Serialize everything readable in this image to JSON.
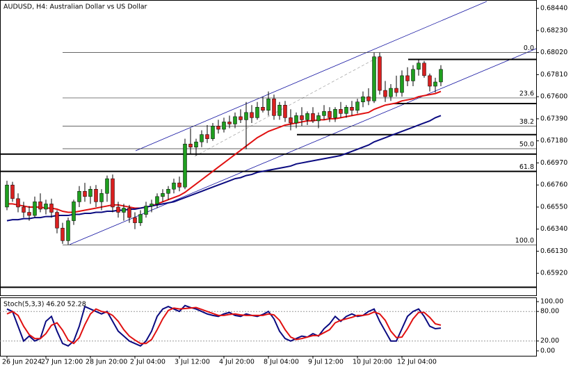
{
  "chart_data": [
    {
      "type": "candlestick",
      "title": "AUDUSD, H4:  Australian Dollar vs US Dollar",
      "open": [
        0.6655,
        0.6676,
        0.6663,
        0.6655,
        0.665,
        0.6647,
        0.666,
        0.6653,
        0.6658,
        0.665,
        0.6635,
        0.6623,
        0.6642,
        0.666,
        0.667,
        0.6665,
        0.6672,
        0.666,
        0.6668,
        0.6682,
        0.6655,
        0.665,
        0.6654,
        0.6645,
        0.664,
        0.6648,
        0.6656,
        0.6658,
        0.6665,
        0.6668,
        0.6672,
        0.6678,
        0.6674,
        0.6715,
        0.6712,
        0.6717,
        0.6724,
        0.672,
        0.6732,
        0.6729,
        0.6736,
        0.6734,
        0.6741,
        0.6738,
        0.6745,
        0.674,
        0.675,
        0.6747,
        0.6758,
        0.6742,
        0.6752,
        0.674,
        0.6735,
        0.6742,
        0.6738,
        0.6744,
        0.6737,
        0.6742,
        0.6746,
        0.674,
        0.6748,
        0.6744,
        0.675,
        0.6747,
        0.6755,
        0.676,
        0.6756,
        0.6798,
        0.6766,
        0.676,
        0.6768,
        0.6764,
        0.678,
        0.6775,
        0.6786,
        0.6792,
        0.678,
        0.677,
        0.6774
      ],
      "high": [
        0.668,
        0.6679,
        0.6668,
        0.666,
        0.6656,
        0.6665,
        0.6668,
        0.6662,
        0.6663,
        0.6652,
        0.664,
        0.6645,
        0.6662,
        0.6675,
        0.6678,
        0.6675,
        0.6676,
        0.6672,
        0.6685,
        0.6686,
        0.666,
        0.6658,
        0.6657,
        0.665,
        0.6652,
        0.666,
        0.6662,
        0.6668,
        0.6672,
        0.6675,
        0.6682,
        0.6684,
        0.672,
        0.673,
        0.672,
        0.6728,
        0.6733,
        0.6735,
        0.6738,
        0.674,
        0.6742,
        0.6745,
        0.6748,
        0.6755,
        0.6752,
        0.6755,
        0.676,
        0.6765,
        0.6762,
        0.6755,
        0.6756,
        0.6748,
        0.6745,
        0.675,
        0.6746,
        0.675,
        0.6745,
        0.6752,
        0.675,
        0.675,
        0.6755,
        0.6752,
        0.6756,
        0.6758,
        0.6765,
        0.6768,
        0.6802,
        0.6802,
        0.6775,
        0.6772,
        0.678,
        0.6785,
        0.6788,
        0.679,
        0.6796,
        0.6794,
        0.6782,
        0.6778,
        0.679
      ],
      "low": [
        0.6652,
        0.666,
        0.665,
        0.6645,
        0.6642,
        0.6645,
        0.665,
        0.6648,
        0.6645,
        0.663,
        0.662,
        0.6619,
        0.6638,
        0.6655,
        0.666,
        0.6658,
        0.6655,
        0.6652,
        0.666,
        0.665,
        0.6645,
        0.6642,
        0.664,
        0.6634,
        0.6637,
        0.6645,
        0.665,
        0.6654,
        0.666,
        0.6662,
        0.6668,
        0.667,
        0.6672,
        0.6705,
        0.6704,
        0.6712,
        0.6716,
        0.6718,
        0.6725,
        0.6726,
        0.673,
        0.673,
        0.6735,
        0.671,
        0.6735,
        0.6738,
        0.6745,
        0.6742,
        0.6738,
        0.6738,
        0.6736,
        0.6728,
        0.673,
        0.6732,
        0.6733,
        0.6735,
        0.673,
        0.6738,
        0.6736,
        0.6736,
        0.674,
        0.674,
        0.6742,
        0.6744,
        0.675,
        0.6752,
        0.6754,
        0.6762,
        0.6755,
        0.6756,
        0.676,
        0.676,
        0.677,
        0.677,
        0.678,
        0.6778,
        0.6765,
        0.6764,
        0.677
      ],
      "close": [
        0.6676,
        0.6663,
        0.6655,
        0.665,
        0.6647,
        0.666,
        0.6653,
        0.6658,
        0.665,
        0.6635,
        0.6623,
        0.6642,
        0.666,
        0.667,
        0.6665,
        0.6672,
        0.666,
        0.6668,
        0.6682,
        0.6655,
        0.665,
        0.6654,
        0.6645,
        0.664,
        0.6648,
        0.6656,
        0.6658,
        0.6665,
        0.6668,
        0.6672,
        0.6678,
        0.6674,
        0.6715,
        0.6712,
        0.6717,
        0.6724,
        0.672,
        0.6732,
        0.6729,
        0.6736,
        0.6734,
        0.6741,
        0.6738,
        0.6745,
        0.674,
        0.675,
        0.6747,
        0.6758,
        0.6742,
        0.6752,
        0.674,
        0.6735,
        0.6742,
        0.6738,
        0.6744,
        0.6737,
        0.6742,
        0.6746,
        0.674,
        0.6748,
        0.6744,
        0.675,
        0.6747,
        0.6755,
        0.676,
        0.6756,
        0.6798,
        0.6766,
        0.676,
        0.6768,
        0.6764,
        0.678,
        0.6775,
        0.6786,
        0.6792,
        0.678,
        0.677,
        0.6774,
        0.6786
      ],
      "up_color": "#1f9e1f",
      "down_color": "#d92020",
      "overlays": [
        {
          "color": "#e01010",
          "values": [
            0.6658,
            0.6658,
            0.6657,
            0.6656,
            0.6655,
            0.6655,
            0.6655,
            0.6654,
            0.6654,
            0.6653,
            0.6651,
            0.665,
            0.665,
            0.6651,
            0.6652,
            0.6653,
            0.6654,
            0.6655,
            0.6656,
            0.6657,
            0.6657,
            0.6656,
            0.6655,
            0.6654,
            0.6654,
            0.6655,
            0.6656,
            0.6658,
            0.666,
            0.6662,
            0.6664,
            0.6666,
            0.6669,
            0.6673,
            0.6677,
            0.6681,
            0.6685,
            0.6689,
            0.6693,
            0.6697,
            0.6701,
            0.6705,
            0.6709,
            0.6713,
            0.6717,
            0.6721,
            0.6724,
            0.6727,
            0.6729,
            0.6731,
            0.6733,
            0.6734,
            0.6735,
            0.6736,
            0.6737,
            0.6737,
            0.6738,
            0.6738,
            0.6739,
            0.6739,
            0.674,
            0.6741,
            0.6742,
            0.6743,
            0.6744,
            0.6745,
            0.6748,
            0.675,
            0.6752,
            0.6753,
            0.6754,
            0.6756,
            0.6757,
            0.6758,
            0.676,
            0.6761,
            0.6762,
            0.6763,
            0.6765
          ]
        },
        {
          "color": "#0a0a80",
          "values": [
            0.6642,
            0.6643,
            0.6643,
            0.6644,
            0.6644,
            0.6645,
            0.6645,
            0.6646,
            0.6646,
            0.6647,
            0.6647,
            0.6647,
            0.6648,
            0.6648,
            0.6649,
            0.6649,
            0.665,
            0.665,
            0.6651,
            0.6651,
            0.6652,
            0.6652,
            0.6653,
            0.6653,
            0.6654,
            0.6655,
            0.6656,
            0.6657,
            0.6658,
            0.6659,
            0.666,
            0.6662,
            0.6664,
            0.6666,
            0.6668,
            0.667,
            0.6672,
            0.6674,
            0.6676,
            0.6678,
            0.668,
            0.6682,
            0.6683,
            0.6685,
            0.6686,
            0.6688,
            0.6689,
            0.669,
            0.6691,
            0.6692,
            0.6693,
            0.6694,
            0.6696,
            0.6697,
            0.6698,
            0.6699,
            0.67,
            0.6701,
            0.6702,
            0.6703,
            0.6704,
            0.6706,
            0.6708,
            0.671,
            0.6712,
            0.6714,
            0.6717,
            0.6719,
            0.6721,
            0.6723,
            0.6725,
            0.6727,
            0.6729,
            0.6731,
            0.6733,
            0.6735,
            0.6737,
            0.674,
            0.6742
          ]
        }
      ],
      "fib_levels": [
        {
          "label": "0.0",
          "price": 0.6802
        },
        {
          "label": "23.6",
          "price": 0.67588
        },
        {
          "label": "38.2",
          "price": 0.67321
        },
        {
          "label": "50.0",
          "price": 0.67105
        },
        {
          "label": "61.8",
          "price": 0.66889
        },
        {
          "label": "100.0",
          "price": 0.6619
        }
      ],
      "levels": [
        0.67955,
        0.67535,
        0.67239,
        0.67054,
        0.66889,
        0.65787
      ],
      "ylim": [
        0.6571,
        0.6852
      ],
      "yticks": [
        {
          "value": 0.6844,
          "label": "0.68440"
        },
        {
          "value": 0.6823,
          "label": "0.68230"
        },
        {
          "value": 0.6802,
          "label": "0.68020"
        },
        {
          "value": 0.6781,
          "label": "0.67810"
        },
        {
          "value": 0.676,
          "label": "0.67600"
        },
        {
          "value": 0.6739,
          "label": "0.67390"
        },
        {
          "value": 0.6718,
          "label": "0.67180"
        },
        {
          "value": 0.6697,
          "label": "0.66970"
        },
        {
          "value": 0.6676,
          "label": "0.66760"
        },
        {
          "value": 0.6655,
          "label": "0.66550"
        },
        {
          "value": 0.6634,
          "label": "0.66340"
        },
        {
          "value": 0.6613,
          "label": "0.66130"
        },
        {
          "value": 0.6592,
          "label": "0.65920"
        }
      ]
    },
    {
      "type": "line",
      "title": "Stoch(5,3,3) 46.20 52.28",
      "categories": [
        "26 Jun 2024",
        null,
        null,
        null,
        null,
        null,
        null,
        "27 Jun 12:00",
        null,
        null,
        null,
        null,
        null,
        null,
        null,
        "28 Jun 20:00",
        null,
        null,
        null,
        null,
        null,
        null,
        null,
        "2 Jul 04:00",
        null,
        null,
        null,
        null,
        null,
        null,
        null,
        "3 Jul 12:00",
        null,
        null,
        null,
        null,
        null,
        null,
        null,
        "4 Jul 20:00",
        null,
        null,
        null,
        null,
        null,
        null,
        null,
        "8 Jul 04:00",
        null,
        null,
        null,
        null,
        null,
        null,
        null,
        "9 Jul 12:00",
        null,
        null,
        null,
        null,
        null,
        null,
        null,
        "10 Jul 20:00",
        null,
        null,
        null,
        null,
        null,
        null,
        null,
        "12 Jul 04:00",
        null,
        null,
        null,
        null,
        null,
        null,
        null
      ],
      "series": [
        {
          "color": "#0a0a80",
          "values": [
            85,
            80,
            50,
            20,
            30,
            20,
            25,
            60,
            70,
            40,
            15,
            10,
            20,
            50,
            90,
            85,
            80,
            75,
            80,
            60,
            40,
            30,
            20,
            15,
            10,
            20,
            40,
            70,
            85,
            90,
            85,
            80,
            92,
            88,
            85,
            80,
            75,
            72,
            70,
            75,
            78,
            72,
            70,
            75,
            72,
            70,
            74,
            80,
            65,
            40,
            25,
            20,
            25,
            30,
            28,
            35,
            30,
            45,
            55,
            70,
            60,
            70,
            75,
            70,
            72,
            80,
            85,
            60,
            40,
            20,
            20,
            45,
            70,
            80,
            85,
            70,
            50,
            45,
            46.2
          ]
        },
        {
          "color": "#e01010",
          "values": [
            75,
            80,
            72,
            50,
            33,
            25,
            25,
            35,
            52,
            57,
            42,
            22,
            15,
            27,
            53,
            75,
            85,
            80,
            78,
            72,
            60,
            43,
            30,
            22,
            15,
            15,
            23,
            43,
            65,
            82,
            87,
            85,
            86,
            87,
            88,
            84,
            80,
            76,
            72,
            72,
            74,
            75,
            73,
            72,
            72,
            72,
            72,
            75,
            73,
            62,
            43,
            28,
            23,
            25,
            28,
            31,
            31,
            37,
            43,
            57,
            62,
            65,
            68,
            72,
            72,
            74,
            79,
            75,
            62,
            40,
            27,
            28,
            45,
            65,
            78,
            78,
            68,
            55,
            52.28
          ]
        }
      ],
      "ylim": [
        -10,
        108.5
      ],
      "yticks": [
        {
          "value": 100,
          "label": "100.00"
        },
        {
          "value": 80,
          "label": "80.00"
        },
        {
          "value": 20,
          "label": "20.00"
        },
        {
          "value": 0,
          "label": "0.00"
        }
      ]
    }
  ]
}
